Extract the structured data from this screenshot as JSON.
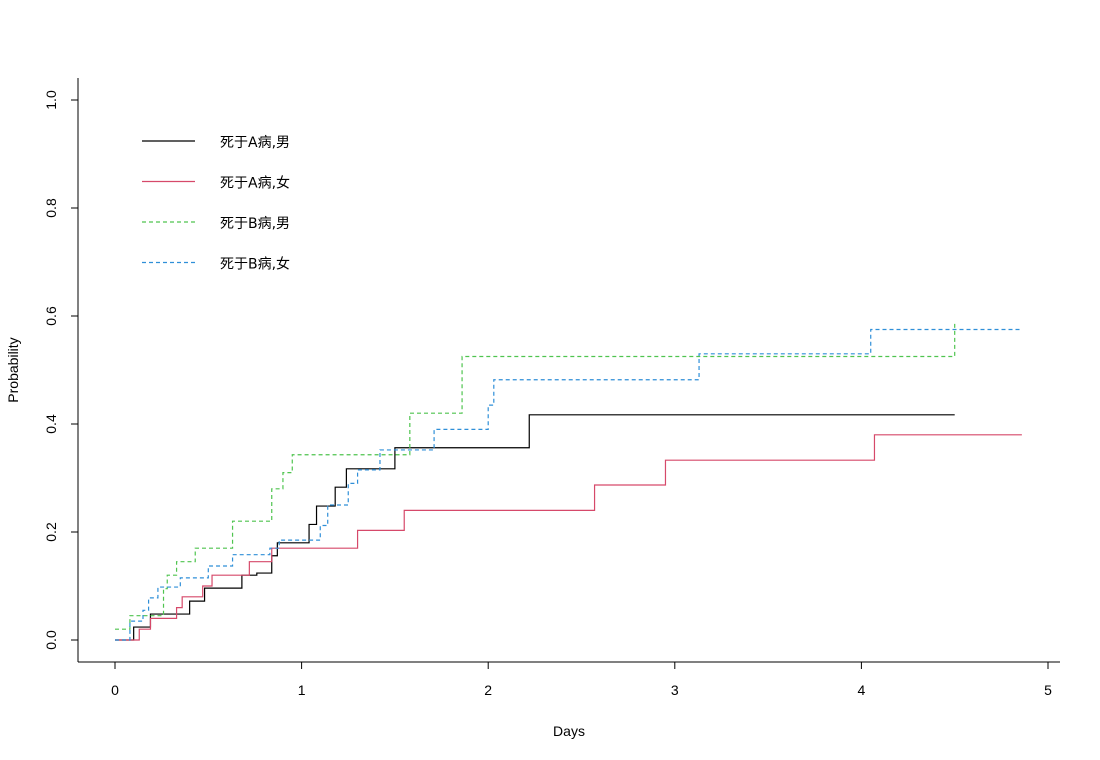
{
  "chart_data": {
    "type": "line",
    "step": true,
    "xlabel": "Days",
    "ylabel": "Probability",
    "xlim": [
      0,
      5
    ],
    "ylim": [
      0,
      1
    ],
    "xticks": [
      "0",
      "1",
      "2",
      "3",
      "4",
      "5"
    ],
    "yticks": [
      "0.0",
      "0.2",
      "0.4",
      "0.6",
      "0.8",
      "1.0"
    ],
    "grid": false,
    "legend_position": "top-left",
    "series": [
      {
        "name": "死于A病,男",
        "color": "#000000",
        "dash": "solid",
        "points": [
          [
            0,
            0
          ],
          [
            0.1,
            0.024
          ],
          [
            0.19,
            0.048
          ],
          [
            0.4,
            0.072
          ],
          [
            0.48,
            0.096
          ],
          [
            0.68,
            0.12
          ],
          [
            0.76,
            0.124
          ],
          [
            0.84,
            0.156
          ],
          [
            0.87,
            0.18
          ],
          [
            1.04,
            0.214
          ],
          [
            1.08,
            0.248
          ],
          [
            1.18,
            0.283
          ],
          [
            1.24,
            0.317
          ],
          [
            1.5,
            0.356
          ],
          [
            2.22,
            0.417
          ],
          [
            4.5,
            0.417
          ]
        ]
      },
      {
        "name": "死于A病,女",
        "color": "#d6496a",
        "dash": "solid",
        "points": [
          [
            0,
            0
          ],
          [
            0.13,
            0.02
          ],
          [
            0.19,
            0.04
          ],
          [
            0.33,
            0.06
          ],
          [
            0.36,
            0.08
          ],
          [
            0.47,
            0.1
          ],
          [
            0.52,
            0.12
          ],
          [
            0.72,
            0.145
          ],
          [
            0.84,
            0.17
          ],
          [
            1.3,
            0.203
          ],
          [
            1.55,
            0.24
          ],
          [
            2.57,
            0.287
          ],
          [
            2.95,
            0.333
          ],
          [
            4.07,
            0.38
          ],
          [
            4.86,
            0.38
          ]
        ]
      },
      {
        "name": "死于B病,男",
        "color": "#4fc44f",
        "dash": "dashed",
        "points": [
          [
            0,
            0.02
          ],
          [
            0.08,
            0.045
          ],
          [
            0.26,
            0.095
          ],
          [
            0.28,
            0.12
          ],
          [
            0.33,
            0.145
          ],
          [
            0.43,
            0.17
          ],
          [
            0.63,
            0.22
          ],
          [
            0.84,
            0.28
          ],
          [
            0.9,
            0.31
          ],
          [
            0.95,
            0.343
          ],
          [
            1.58,
            0.42
          ],
          [
            1.86,
            0.525
          ],
          [
            4.5,
            0.59
          ]
        ]
      },
      {
        "name": "死于B病,女",
        "color": "#2f8fd8",
        "dash": "dashed",
        "points": [
          [
            0,
            0
          ],
          [
            0.08,
            0.035
          ],
          [
            0.15,
            0.055
          ],
          [
            0.18,
            0.078
          ],
          [
            0.23,
            0.098
          ],
          [
            0.35,
            0.115
          ],
          [
            0.5,
            0.137
          ],
          [
            0.63,
            0.158
          ],
          [
            0.83,
            0.17
          ],
          [
            0.88,
            0.185
          ],
          [
            1.1,
            0.212
          ],
          [
            1.14,
            0.25
          ],
          [
            1.25,
            0.29
          ],
          [
            1.3,
            0.315
          ],
          [
            1.42,
            0.352
          ],
          [
            1.71,
            0.39
          ],
          [
            2.0,
            0.435
          ],
          [
            2.03,
            0.482
          ],
          [
            3.13,
            0.53
          ],
          [
            4.05,
            0.575
          ],
          [
            4.86,
            0.575
          ]
        ]
      }
    ]
  }
}
